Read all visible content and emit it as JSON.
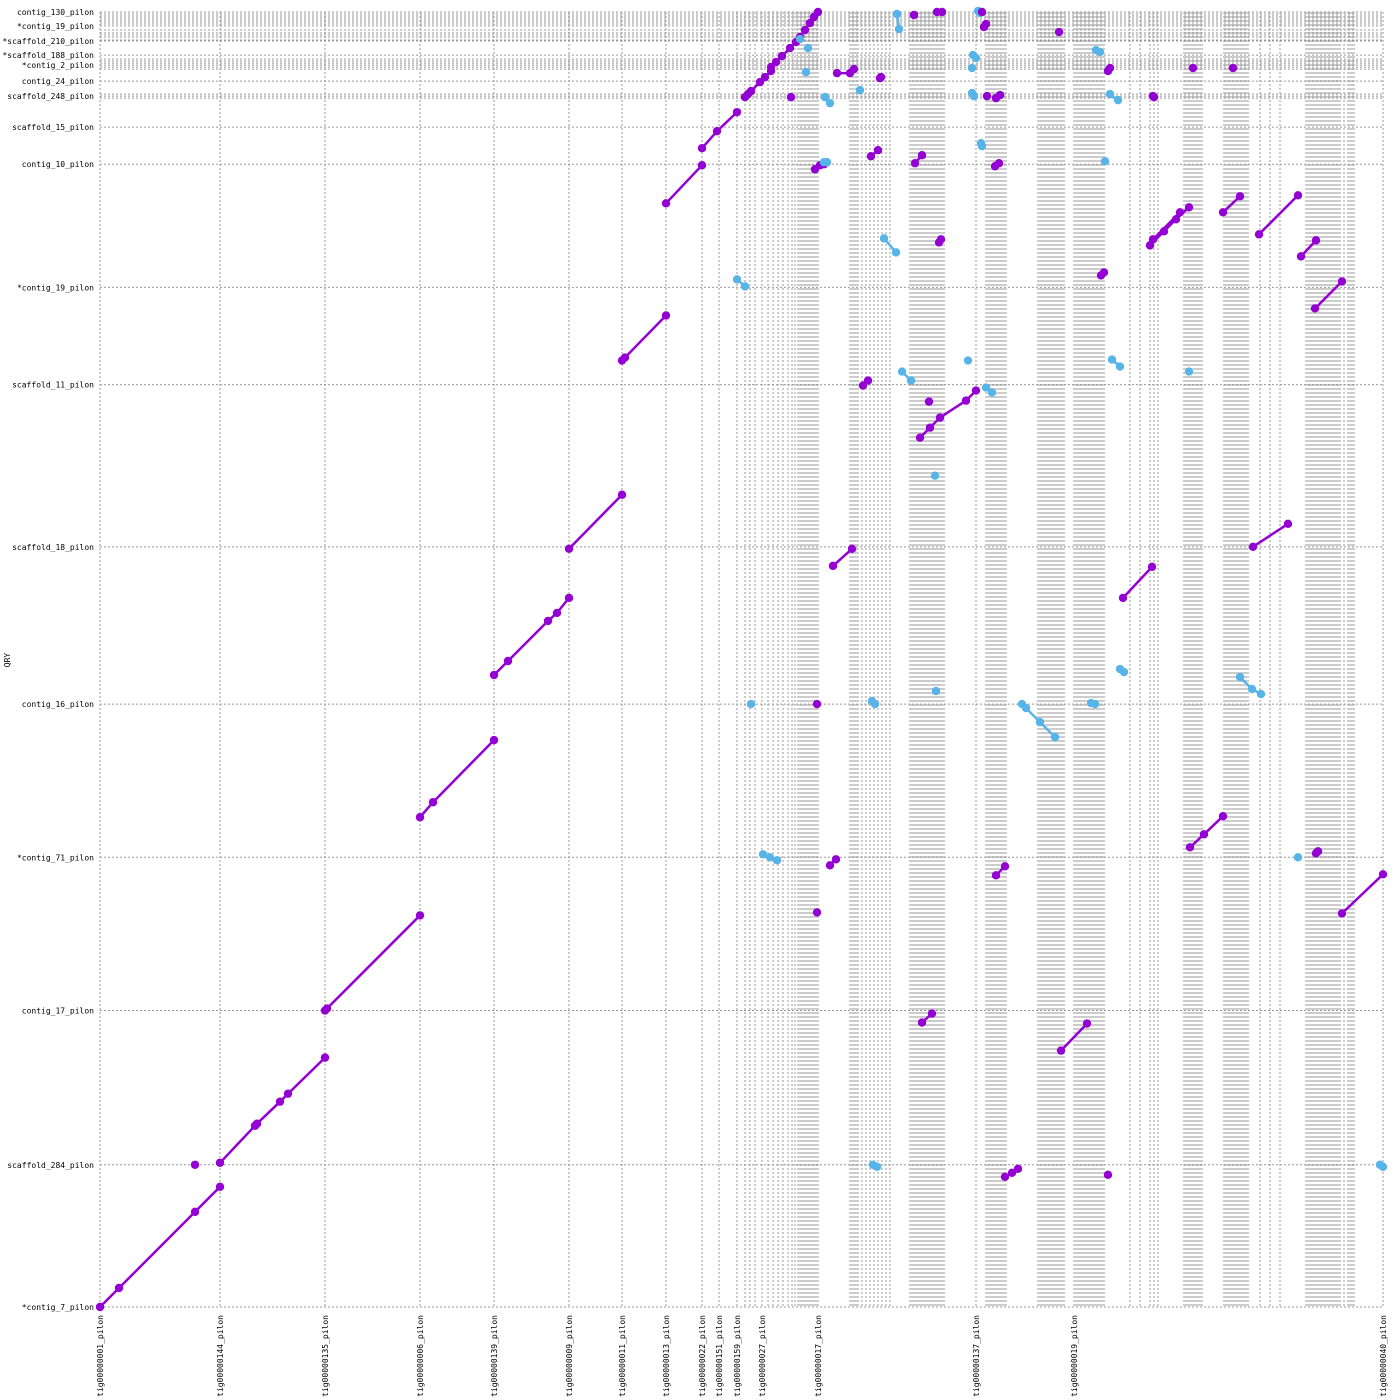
{
  "chart_data": {
    "type": "scatter",
    "title": "",
    "xlabel": "",
    "ylabel": "QRY",
    "xlim": [
      0,
      1283
    ],
    "ylim": [
      0,
      1293
    ],
    "grid": true,
    "colors": {
      "forward": "#9400d3",
      "reverse": "#56b4e9",
      "grid": "#999999"
    },
    "x_ticks": [
      {
        "pos": 0,
        "label": "tig00000001_pilon"
      },
      {
        "pos": 120,
        "label": "tig00000144_pilon"
      },
      {
        "pos": 225,
        "label": "tig00000135_pilon"
      },
      {
        "pos": 320,
        "label": "tig00000006_pilon"
      },
      {
        "pos": 394,
        "label": "tig00000139_pilon"
      },
      {
        "pos": 469,
        "label": "tig00000009_pilon"
      },
      {
        "pos": 522,
        "label": "tig00000011_pilon"
      },
      {
        "pos": 566,
        "label": "tig00000013_pilon"
      },
      {
        "pos": 602,
        "label": "tig00000022_pilon"
      },
      {
        "pos": 619,
        "label": "tig00000151_pilon"
      },
      {
        "pos": 637,
        "label": "tig00000159_pilon"
      },
      {
        "pos": 662,
        "label": "tig00000027_pilon"
      },
      {
        "pos": 718,
        "label": "tig00000017_pilon"
      },
      {
        "pos": 876,
        "label": "tig00000137_pilon"
      },
      {
        "pos": 974,
        "label": "tig00000019_pilon"
      },
      {
        "pos": 1283,
        "label": "tig00000040_pilon"
      }
    ],
    "y_ticks": [
      {
        "pos": 0,
        "label": "*contig_7_pilon"
      },
      {
        "pos": 142,
        "label": "scaffold_284_pilon"
      },
      {
        "pos": 296,
        "label": "contig_17_pilon"
      },
      {
        "pos": 449,
        "label": "*contig_71_pilon"
      },
      {
        "pos": 602,
        "label": "contig_16_pilon"
      },
      {
        "pos": 759,
        "label": "scaffold_18_pilon"
      },
      {
        "pos": 921,
        "label": "scaffold_11_pilon"
      },
      {
        "pos": 1018,
        "label": "*contig_19_pilon"
      },
      {
        "pos": 1141,
        "label": "contig_10_pilon"
      },
      {
        "pos": 1178,
        "label": "scaffold_15_pilon"
      },
      {
        "pos": 1209,
        "label": "scaffold_248_pilon"
      },
      {
        "pos": 1224,
        "label": "contig_24_pilon"
      },
      {
        "pos": 1240,
        "label": "*contig_2_pilon"
      },
      {
        "pos": 1250,
        "label": "*scaffold_188_pilon"
      },
      {
        "pos": 1264,
        "label": "*scaffold_210_pilon"
      },
      {
        "pos": 1279,
        "label": "*contig_19_pilon"
      },
      {
        "pos": 1293,
        "label": "contig_130_pilon"
      }
    ],
    "extra_x_grid": [
      645,
      650,
      655,
      668,
      673,
      678,
      683,
      688,
      692,
      695,
      698,
      700,
      702,
      704,
      706,
      708,
      710,
      712,
      714,
      716,
      750,
      752,
      754,
      756,
      758,
      762,
      766,
      770,
      774,
      778,
      782,
      786,
      790,
      810,
      812,
      814,
      816,
      818,
      820,
      822,
      824,
      826,
      828,
      830,
      832,
      834,
      836,
      838,
      840,
      842,
      844,
      886,
      888,
      890,
      892,
      894,
      896,
      898,
      900,
      902,
      904,
      906,
      938,
      940,
      942,
      944,
      946,
      948,
      950,
      952,
      954,
      956,
      958,
      960,
      962,
      964,
      976,
      978,
      980,
      982,
      984,
      986,
      988,
      990,
      992,
      994,
      996,
      998,
      1000,
      1002,
      1004,
      1030,
      1040,
      1050,
      1054,
      1058,
      1084,
      1086,
      1088,
      1090,
      1092,
      1094,
      1096,
      1098,
      1100,
      1102,
      1124,
      1126,
      1128,
      1130,
      1132,
      1134,
      1136,
      1138,
      1140,
      1142,
      1144,
      1146,
      1148,
      1160,
      1170,
      1180,
      1206,
      1208,
      1210,
      1212,
      1214,
      1216,
      1218,
      1220,
      1222,
      1224,
      1226,
      1228,
      1230,
      1232,
      1234,
      1236,
      1238,
      1240,
      1244,
      1248,
      1250,
      1252,
      1254
    ],
    "extra_y_grid": [
      1207,
      1211,
      1236,
      1238,
      1242,
      1244,
      1246,
      1265,
      1268,
      1270,
      1272,
      1275,
      1281,
      1283,
      1285,
      1287,
      1289,
      1291
    ],
    "forward_segments": [
      [
        [
          0,
          0
        ],
        [
          19,
          19
        ],
        [
          95,
          95
        ],
        [
          120,
          120
        ]
      ],
      [
        [
          120,
          144
        ],
        [
          155,
          181
        ],
        [
          157,
          183
        ],
        [
          180,
          205
        ],
        [
          188,
          213
        ],
        [
          225,
          249
        ]
      ],
      [
        [
          225,
          296
        ],
        [
          227,
          298
        ],
        [
          320,
          391
        ]
      ],
      [
        [
          320,
          489
        ],
        [
          333,
          504
        ],
        [
          394,
          566
        ]
      ],
      [
        [
          394,
          631
        ],
        [
          408,
          645
        ],
        [
          448,
          685
        ],
        [
          457,
          693
        ],
        [
          469,
          708
        ]
      ],
      [
        [
          469,
          757
        ],
        [
          522,
          811
        ]
      ],
      [
        [
          522,
          945
        ],
        [
          525,
          948
        ],
        [
          566,
          990
        ]
      ],
      [
        [
          566,
          1102
        ],
        [
          602,
          1140
        ]
      ],
      [
        [
          602,
          1157
        ],
        [
          617,
          1174
        ],
        [
          637,
          1193
        ]
      ],
      [
        [
          645,
          1208
        ],
        [
          648,
          1211
        ],
        [
          651,
          1214
        ],
        [
          660,
          1223
        ],
        [
          665,
          1228
        ],
        [
          671,
          1234
        ]
      ],
      [
        [
          671,
          1238
        ],
        [
          676,
          1243
        ],
        [
          682,
          1249
        ],
        [
          690,
          1257
        ],
        [
          696,
          1263
        ],
        [
          700,
          1268
        ],
        [
          705,
          1275
        ],
        [
          710,
          1282
        ],
        [
          714,
          1288
        ],
        [
          718,
          1293
        ]
      ],
      [
        [
          733,
          740
        ],
        [
          752,
          757
        ]
      ],
      [
        [
          820,
          868
        ],
        [
          830,
          878
        ],
        [
          840,
          888
        ],
        [
          866,
          905
        ],
        [
          876,
          915
        ]
      ],
      [
        [
          1050,
          1060
        ],
        [
          1064,
          1074
        ],
        [
          1076,
          1086
        ],
        [
          1089,
          1098
        ]
      ],
      [
        [
          1053,
          1066
        ],
        [
          1080,
          1093
        ]
      ],
      [
        [
          1123,
          1093
        ],
        [
          1140,
          1109
        ]
      ],
      [
        [
          1159,
          1071
        ],
        [
          1198,
          1110
        ]
      ],
      [
        [
          1215,
          997
        ],
        [
          1242,
          1024
        ]
      ],
      [
        [
          1201,
          1049
        ],
        [
          1216,
          1065
        ]
      ],
      [
        [
          1090,
          459
        ],
        [
          1104,
          472
        ],
        [
          1123,
          490
        ]
      ],
      [
        [
          1242,
          393
        ],
        [
          1283,
          432
        ]
      ],
      [
        [
          1023,
          708
        ],
        [
          1052,
          739
        ]
      ],
      [
        [
          961,
          256
        ],
        [
          987,
          283
        ]
      ],
      [
        [
          822,
          284
        ],
        [
          832,
          293
        ]
      ],
      [
        [
          905,
          130
        ],
        [
          912,
          134
        ],
        [
          918,
          138
        ]
      ],
      [
        [
          1153,
          759
        ],
        [
          1188,
          782
        ]
      ],
      [
        [
          715,
          1136
        ],
        [
          720,
          1140
        ],
        [
          724,
          1141
        ]
      ],
      [
        [
          815,
          1142
        ],
        [
          822,
          1150
        ]
      ],
      [
        [
          895,
          1139
        ],
        [
          899,
          1142
        ]
      ],
      [
        [
          884,
          1278
        ],
        [
          886,
          1281
        ]
      ],
      [
        [
          737,
          1232
        ],
        [
          750,
          1232
        ]
      ],
      [
        [
          771,
          1149
        ],
        [
          778,
          1155
        ]
      ],
      [
        [
          763,
          920
        ],
        [
          768,
          925
        ]
      ],
      [
        [
          780,
          1227
        ],
        [
          781,
          1228
        ]
      ],
      [
        [
          896,
          1207
        ],
        [
          900,
          1210
        ]
      ],
      [
        [
          896,
          431
        ],
        [
          905,
          440
        ]
      ],
      [
        [
          730,
          441
        ],
        [
          736,
          447
        ]
      ],
      [
        [
          839,
          1063
        ],
        [
          841,
          1066
        ]
      ],
      [
        [
          1008,
          1234
        ],
        [
          1010,
          1237
        ]
      ],
      [
        [
          1001,
          1030
        ],
        [
          1004,
          1033
        ]
      ],
      [
        [
          1216,
          453
        ],
        [
          1218,
          455
        ]
      ]
    ],
    "forward_points": [
      [
        95,
        142
      ],
      [
        717,
        394
      ],
      [
        717,
        602
      ],
      [
        754,
        1236
      ],
      [
        691,
        1208
      ],
      [
        814,
        1290
      ],
      [
        842,
        1293
      ],
      [
        882,
        1293
      ],
      [
        887,
        1209
      ],
      [
        959,
        1273
      ],
      [
        1054,
        1208
      ],
      [
        1093,
        1237
      ],
      [
        1133,
        1237
      ],
      [
        1008,
        132
      ],
      [
        829,
        904
      ],
      [
        837,
        1293
      ],
      [
        1053,
        1209
      ]
    ],
    "reverse_segments": [
      [
        [
          784,
          1067
        ],
        [
          796,
          1053
        ]
      ],
      [
        [
          637,
          1026
        ],
        [
          645,
          1019
        ]
      ],
      [
        [
          802,
          934
        ],
        [
          811,
          925
        ]
      ],
      [
        [
          1012,
          946
        ],
        [
          1020,
          939
        ]
      ],
      [
        [
          1140,
          629
        ],
        [
          1152,
          617
        ],
        [
          1161,
          612
        ]
      ],
      [
        [
          922,
          602
        ],
        [
          926,
          598
        ],
        [
          940,
          584
        ],
        [
          955,
          569
        ]
      ],
      [
        [
          663,
          452
        ],
        [
          670,
          449
        ],
        [
          677,
          446
        ]
      ],
      [
        [
          991,
          603
        ],
        [
          995,
          602
        ]
      ],
      [
        [
          1020,
          637
        ],
        [
          1024,
          634
        ]
      ],
      [
        [
          773,
          142
        ],
        [
          777,
          140
        ]
      ],
      [
        [
          1280,
          142
        ],
        [
          1283,
          140
        ]
      ],
      [
        [
          725,
          1208
        ],
        [
          730,
          1202
        ]
      ],
      [
        [
          873,
          1250
        ],
        [
          876,
          1247
        ]
      ],
      [
        [
          996,
          1255
        ],
        [
          1000,
          1253
        ]
      ],
      [
        [
          724,
          1143
        ],
        [
          727,
          1143
        ]
      ],
      [
        [
          772,
          605
        ],
        [
          775,
          602
        ]
      ],
      [
        [
          886,
          918
        ],
        [
          892,
          913
        ]
      ],
      [
        [
          1010,
          1211
        ],
        [
          1018,
          1205
        ]
      ],
      [
        [
          878,
          1294
        ],
        [
          880,
          1292
        ]
      ],
      [
        [
          797,
          1291
        ],
        [
          799,
          1276
        ]
      ]
    ],
    "reverse_points": [
      [
        651,
        602
      ],
      [
        836,
        615
      ],
      [
        1198,
        449
      ],
      [
        1005,
        1144
      ],
      [
        1089,
        934
      ],
      [
        835,
        830
      ],
      [
        881,
        1162
      ],
      [
        760,
        1215
      ],
      [
        700,
        1266
      ],
      [
        706,
        1233
      ],
      [
        708,
        1257
      ],
      [
        872,
        1212
      ],
      [
        872,
        1237
      ],
      [
        882,
        1159
      ],
      [
        868,
        945
      ],
      [
        874,
        1209
      ]
    ]
  }
}
